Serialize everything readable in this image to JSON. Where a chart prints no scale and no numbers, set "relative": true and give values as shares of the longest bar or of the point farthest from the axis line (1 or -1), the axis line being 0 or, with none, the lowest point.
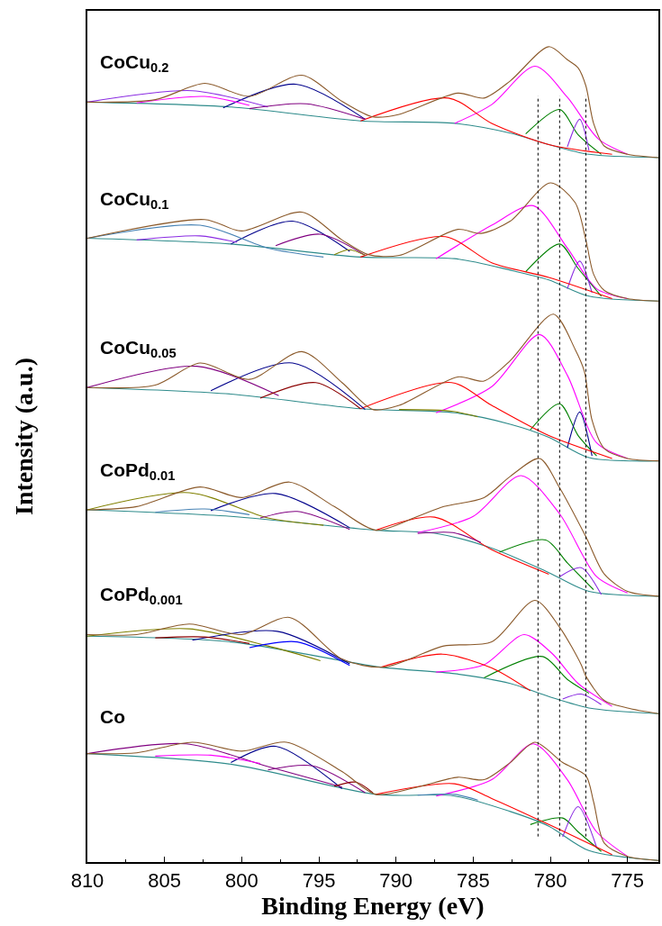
{
  "chart_data": {
    "type": "line",
    "relative": true,
    "xlabel": "Binding Energy (eV)",
    "ylabel": "Intensity (a.u.)",
    "xlim": [
      810,
      773
    ],
    "xticks": [
      810,
      805,
      800,
      795,
      790,
      785,
      780,
      775
    ],
    "legend": false,
    "marker": "none",
    "line_style": "solid",
    "ref_lines": [
      {
        "axis": "x",
        "value": 780.8,
        "color": "#000000",
        "line_style": "dotted"
      },
      {
        "axis": "x",
        "value": 779.4,
        "color": "#000000",
        "line_style": "dotted"
      },
      {
        "axis": "x",
        "value": 777.7,
        "color": "#000000",
        "line_style": "dotted"
      }
    ],
    "series": [
      {
        "color": "#2e8b8b",
        "x": [
          810,
          800.7,
          792.3,
          786.2,
          782.6,
          780.1,
          777.5,
          773
        ],
        "values": [
          0.932,
          0.926,
          0.909,
          0.906,
          0.894,
          0.88,
          0.868,
          0.864
        ]
      },
      {
        "color": "#ff00ff",
        "x": [
          786.2,
          783.8,
          781.0,
          778.9,
          776.9,
          775
        ],
        "values": [
          0.906,
          0.929,
          0.976,
          0.938,
          0.887,
          0.868
        ]
      },
      {
        "color": "#008000",
        "x": [
          781.6,
          779.4,
          778.2,
          776.7
        ],
        "values": [
          0.893,
          0.923,
          0.892,
          0.868
        ]
      },
      {
        "color": "#8a2be2",
        "x": [
          778.9,
          778.1,
          777.5
        ],
        "values": [
          0.877,
          0.911,
          0.873
        ]
      },
      {
        "color": "#ff0000",
        "x": [
          792.3,
          786.6,
          783.8,
          780.1,
          776.0
        ],
        "values": [
          0.909,
          0.937,
          0.906,
          0.88,
          0.868
        ]
      },
      {
        "color": "#00008b",
        "x": [
          801.2,
          796.5,
          792.0
        ],
        "values": [
          0.925,
          0.954,
          0.911
        ]
      },
      {
        "color": "#8a2be2",
        "x": [
          810,
          803.2,
          798.3
        ],
        "values": [
          0.932,
          0.946,
          0.926
        ]
      },
      {
        "color": "#ff00ff",
        "x": [
          806.8,
          802.4,
          799.5
        ],
        "values": [
          0.931,
          0.939,
          0.928
        ]
      },
      {
        "color": "#800080",
        "x": [
          799.5,
          795.8,
          792.0
        ],
        "values": [
          0.924,
          0.93,
          0.911
        ]
      },
      {
        "name": "CoCu$_{0.2}$",
        "color": "#8b5a2b",
        "x": [
          810,
          805.6,
          802.4,
          799.5,
          796.1,
          793.5,
          791.5,
          789.8,
          786.0,
          784.3,
          782.6,
          780.1,
          778.9,
          778.2,
          777.7,
          777.2,
          776.5,
          775.0,
          773
        ],
        "values": [
          0.932,
          0.935,
          0.955,
          0.939,
          0.965,
          0.933,
          0.914,
          0.917,
          0.943,
          0.937,
          0.958,
          1.0,
          0.984,
          0.974,
          0.952,
          0.906,
          0.878,
          0.868,
          0.864
        ]
      },
      {
        "color": "#2e8b8b",
        "x": [
          810,
          800.7,
          792.3,
          786.2,
          782.6,
          780.1,
          777.5,
          773
        ],
        "values": [
          0.765,
          0.758,
          0.742,
          0.74,
          0.726,
          0.714,
          0.694,
          0.688
        ]
      },
      {
        "color": "#ff00ff",
        "x": [
          787.4,
          783.8,
          781.1,
          778.9,
          777.0,
          775.0
        ],
        "values": [
          0.74,
          0.781,
          0.805,
          0.753,
          0.703,
          0.691
        ]
      },
      {
        "color": "#008000",
        "x": [
          781.6,
          779.4,
          778.2,
          776.7
        ],
        "values": [
          0.724,
          0.758,
          0.728,
          0.694
        ]
      },
      {
        "color": "#8a2be2",
        "x": [
          778.9,
          778.1,
          777.3
        ],
        "values": [
          0.703,
          0.737,
          0.698
        ]
      },
      {
        "color": "#ff0000",
        "x": [
          792.3,
          786.8,
          783.8,
          780.1,
          776.0
        ],
        "values": [
          0.742,
          0.767,
          0.735,
          0.717,
          0.691
        ]
      },
      {
        "color": "#00008b",
        "x": [
          800.7,
          796.7,
          793.0
        ],
        "values": [
          0.758,
          0.786,
          0.749
        ]
      },
      {
        "color": "#4682b4",
        "x": [
          810,
          802.7,
          798.3,
          794.7
        ],
        "values": [
          0.765,
          0.781,
          0.753,
          0.742
        ]
      },
      {
        "color": "#8a2be2",
        "x": [
          806.8,
          802.7,
          800.3
        ],
        "values": [
          0.763,
          0.768,
          0.76
        ]
      },
      {
        "color": "#800080",
        "x": [
          797.8,
          794.9,
          792.0
        ],
        "values": [
          0.756,
          0.77,
          0.744
        ]
      },
      {
        "color": "#808000",
        "x": [
          794.0,
          793.0,
          792.0
        ],
        "values": [
          0.745,
          0.751,
          0.744
        ]
      },
      {
        "name": "CoCu$_{0.1}$",
        "color": "#8b5a2b",
        "x": [
          810,
          802.4,
          800.0,
          796.1,
          793.5,
          791.8,
          789.8,
          786.0,
          784.5,
          782.6,
          780.0,
          778.4,
          777.7,
          777.2,
          776.5,
          775.0,
          773
        ],
        "values": [
          0.765,
          0.788,
          0.774,
          0.797,
          0.763,
          0.745,
          0.744,
          0.776,
          0.771,
          0.786,
          0.833,
          0.809,
          0.763,
          0.721,
          0.701,
          0.691,
          0.688
        ]
      },
      {
        "color": "#2e8b8b",
        "x": [
          810,
          800.7,
          792.3,
          786.2,
          782.6,
          780.1,
          777.5,
          773
        ],
        "values": [
          0.582,
          0.574,
          0.556,
          0.551,
          0.537,
          0.521,
          0.496,
          0.492
        ]
      },
      {
        "color": "#ff00ff",
        "x": [
          787.4,
          783.8,
          780.7,
          778.9,
          777.0,
          775.0
        ],
        "values": [
          0.551,
          0.583,
          0.647,
          0.597,
          0.514,
          0.495
        ]
      },
      {
        "color": "#008000",
        "x": [
          781.3,
          779.4,
          778.2,
          777.0
        ],
        "values": [
          0.53,
          0.562,
          0.523,
          0.498
        ]
      },
      {
        "color": "#00008b",
        "x": [
          778.9,
          778.1,
          777.3
        ],
        "values": [
          0.508,
          0.552,
          0.498
        ]
      },
      {
        "color": "#ff0000",
        "x": [
          792.3,
          786.4,
          783.8,
          780.1,
          776.0
        ],
        "values": [
          0.556,
          0.588,
          0.56,
          0.523,
          0.495
        ]
      },
      {
        "color": "#00008b",
        "x": [
          802.0,
          796.7,
          792.0
        ],
        "values": [
          0.578,
          0.612,
          0.555
        ]
      },
      {
        "color": "#800080",
        "x": [
          810,
          802.9,
          797.6
        ],
        "values": [
          0.582,
          0.608,
          0.572
        ]
      },
      {
        "color": "#8b0000",
        "x": [
          798.8,
          795.2,
          792.3
        ],
        "values": [
          0.569,
          0.588,
          0.556
        ]
      },
      {
        "color": "#808000",
        "x": [
          789.8,
          786.4,
          784.7
        ],
        "values": [
          0.555,
          0.553,
          0.546
        ]
      },
      {
        "name": "CoCu$_{0.05}$",
        "color": "#8b5a2b",
        "x": [
          810,
          805.6,
          802.7,
          799.5,
          796.1,
          793.5,
          791.5,
          789.8,
          786.0,
          784.3,
          782.6,
          779.8,
          778.4,
          777.8,
          777.3,
          776.5,
          775.0,
          773
        ],
        "values": [
          0.582,
          0.585,
          0.612,
          0.592,
          0.626,
          0.588,
          0.555,
          0.56,
          0.595,
          0.59,
          0.615,
          0.672,
          0.629,
          0.602,
          0.542,
          0.507,
          0.495,
          0.492
        ]
      },
      {
        "color": "#2e8b8b",
        "x": [
          810,
          800.7,
          791.3,
          787.4,
          783.8,
          780.1,
          777.5,
          773
        ],
        "values": [
          0.432,
          0.424,
          0.407,
          0.403,
          0.385,
          0.355,
          0.332,
          0.326
        ]
      },
      {
        "color": "#ff00ff",
        "x": [
          788.6,
          785.0,
          781.9,
          779.4,
          777.0,
          775.0
        ],
        "values": [
          0.404,
          0.424,
          0.474,
          0.427,
          0.35,
          0.33
        ]
      },
      {
        "color": "#008000",
        "x": [
          783.3,
          780.3,
          778.9,
          777.2
        ],
        "values": [
          0.38,
          0.395,
          0.367,
          0.334
        ]
      },
      {
        "color": "#8a2be2",
        "x": [
          779.4,
          778.0,
          776.7
        ],
        "values": [
          0.35,
          0.361,
          0.328
        ]
      },
      {
        "color": "#ff0000",
        "x": [
          791.3,
          787.5,
          783.8,
          780.1
        ],
        "values": [
          0.407,
          0.423,
          0.383,
          0.353
        ]
      },
      {
        "color": "#808000",
        "x": [
          810,
          803.4,
          798.3,
          794.7
        ],
        "values": [
          0.432,
          0.453,
          0.422,
          0.413
        ]
      },
      {
        "color": "#00008b",
        "x": [
          802.0,
          797.8,
          793.0
        ],
        "values": [
          0.431,
          0.452,
          0.41
        ]
      },
      {
        "color": "#800080",
        "x": [
          798.8,
          796.4,
          793.0
        ],
        "values": [
          0.422,
          0.43,
          0.408
        ]
      },
      {
        "color": "#4682b4",
        "x": [
          805.6,
          802.4,
          799.5
        ],
        "values": [
          0.429,
          0.433,
          0.426
        ]
      },
      {
        "color": "#800080",
        "x": [
          788.6,
          786.3,
          784.5
        ],
        "values": [
          0.403,
          0.404,
          0.392
        ]
      },
      {
        "name": "CoPd$_{0.01}$",
        "color": "#8b5a2b",
        "x": [
          810,
          806.8,
          802.7,
          800.0,
          796.9,
          794.0,
          791.3,
          788.6,
          786.9,
          784.3,
          782.6,
          780.7,
          779.4,
          777.7,
          776.5,
          775.0,
          773
        ],
        "values": [
          0.432,
          0.436,
          0.46,
          0.447,
          0.466,
          0.436,
          0.407,
          0.424,
          0.436,
          0.447,
          0.473,
          0.495,
          0.459,
          0.399,
          0.353,
          0.332,
          0.326
        ]
      },
      {
        "color": "#2e8b8b",
        "x": [
          810,
          800.7,
          791.0,
          786.2,
          782.6,
          780.1,
          777.5,
          773
        ],
        "values": [
          0.277,
          0.27,
          0.239,
          0.231,
          0.219,
          0.203,
          0.189,
          0.182
        ]
      },
      {
        "color": "#ff00ff",
        "x": [
          787.4,
          784.3,
          781.7,
          779.9,
          778.2,
          776.0
        ],
        "values": [
          0.233,
          0.242,
          0.279,
          0.256,
          0.219,
          0.191
        ]
      },
      {
        "color": "#008000",
        "x": [
          784.3,
          780.5,
          778.9,
          777.5
        ],
        "values": [
          0.226,
          0.252,
          0.224,
          0.207
        ]
      },
      {
        "color": "#8a2be2",
        "x": [
          779.2,
          778.0,
          776.7
        ],
        "values": [
          0.2,
          0.206,
          0.193
        ]
      },
      {
        "color": "#ff0000",
        "x": [
          791.0,
          787.0,
          783.8,
          781.3
        ],
        "values": [
          0.239,
          0.255,
          0.238,
          0.21
        ]
      },
      {
        "color": "#808000",
        "x": [
          810,
          803.4,
          798.3,
          794.9
        ],
        "values": [
          0.277,
          0.286,
          0.265,
          0.247
        ]
      },
      {
        "color": "#00008b",
        "x": [
          803.2,
          797.7,
          793.0
        ],
        "values": [
          0.272,
          0.283,
          0.243
        ]
      },
      {
        "color": "#0000ff",
        "x": [
          799.5,
          796.4,
          793.0
        ],
        "values": [
          0.263,
          0.27,
          0.241
        ]
      },
      {
        "color": "#8b0000",
        "x": [
          805.6,
          802.4,
          799.5
        ],
        "values": [
          0.275,
          0.276,
          0.268
        ]
      },
      {
        "name": "CoPd$_{0.001}$",
        "color": "#8b5a2b",
        "x": [
          810,
          806.8,
          803.4,
          800.0,
          796.9,
          793.5,
          790.8,
          786.9,
          783.8,
          781.0,
          779.4,
          778.0,
          777.7,
          776.5,
          775.0,
          773
        ],
        "values": [
          0.279,
          0.279,
          0.292,
          0.279,
          0.3,
          0.249,
          0.239,
          0.265,
          0.27,
          0.321,
          0.288,
          0.242,
          0.228,
          0.198,
          0.189,
          0.182
        ]
      },
      {
        "color": "#2e8b8b",
        "x": [
          810,
          800.7,
          791.3,
          786.2,
          782.6,
          780.1,
          777.5,
          773
        ],
        "values": [
          0.133,
          0.12,
          0.083,
          0.081,
          0.062,
          0.044,
          0.014,
          0.002
        ]
      },
      {
        "color": "#ff00ff",
        "x": [
          787.4,
          783.8,
          781.1,
          778.9,
          777.0,
          775.0
        ],
        "values": [
          0.081,
          0.101,
          0.145,
          0.101,
          0.037,
          0.007
        ]
      },
      {
        "color": "#008000",
        "x": [
          781.3,
          779.2,
          778.2,
          776.7
        ],
        "values": [
          0.046,
          0.054,
          0.037,
          0.013
        ]
      },
      {
        "color": "#8a2be2",
        "x": [
          779.2,
          778.2,
          777.0
        ],
        "values": [
          0.031,
          0.068,
          0.018
        ]
      },
      {
        "color": "#ff0000",
        "x": [
          791.3,
          786.2,
          783.8,
          780.1,
          776.0
        ],
        "values": [
          0.083,
          0.096,
          0.078,
          0.046,
          0.009
        ]
      },
      {
        "color": "#00008b",
        "x": [
          800.7,
          797.8,
          793.5
        ],
        "values": [
          0.122,
          0.142,
          0.09
        ]
      },
      {
        "color": "#800080",
        "x": [
          810,
          803.6,
          798.3,
          793.5
        ],
        "values": [
          0.133,
          0.145,
          0.117,
          0.092
        ]
      },
      {
        "color": "#800080",
        "x": [
          798.3,
          795.4,
          792.0
        ],
        "values": [
          0.113,
          0.118,
          0.085
        ]
      },
      {
        "color": "#ff00ff",
        "x": [
          805.6,
          802.0,
          798.8
        ],
        "values": [
          0.13,
          0.131,
          0.121
        ]
      },
      {
        "color": "#8b0000",
        "x": [
          794.0,
          792.6,
          791.5
        ],
        "values": [
          0.093,
          0.098,
          0.085
        ]
      },
      {
        "color": "#4682b4",
        "x": [
          788.6,
          786.2,
          784.7
        ],
        "values": [
          0.082,
          0.083,
          0.076
        ]
      },
      {
        "name": "Co",
        "color": "#8b5a2b",
        "x": [
          810,
          806.8,
          803.2,
          800.0,
          797.1,
          793.5,
          791.3,
          788.6,
          786.0,
          784.3,
          782.6,
          781.0,
          779.2,
          777.7,
          777.2,
          776.5,
          775.0,
          773
        ],
        "values": [
          0.133,
          0.134,
          0.147,
          0.136,
          0.147,
          0.111,
          0.083,
          0.092,
          0.104,
          0.101,
          0.122,
          0.147,
          0.122,
          0.106,
          0.074,
          0.023,
          0.007,
          0.002
        ]
      }
    ]
  }
}
